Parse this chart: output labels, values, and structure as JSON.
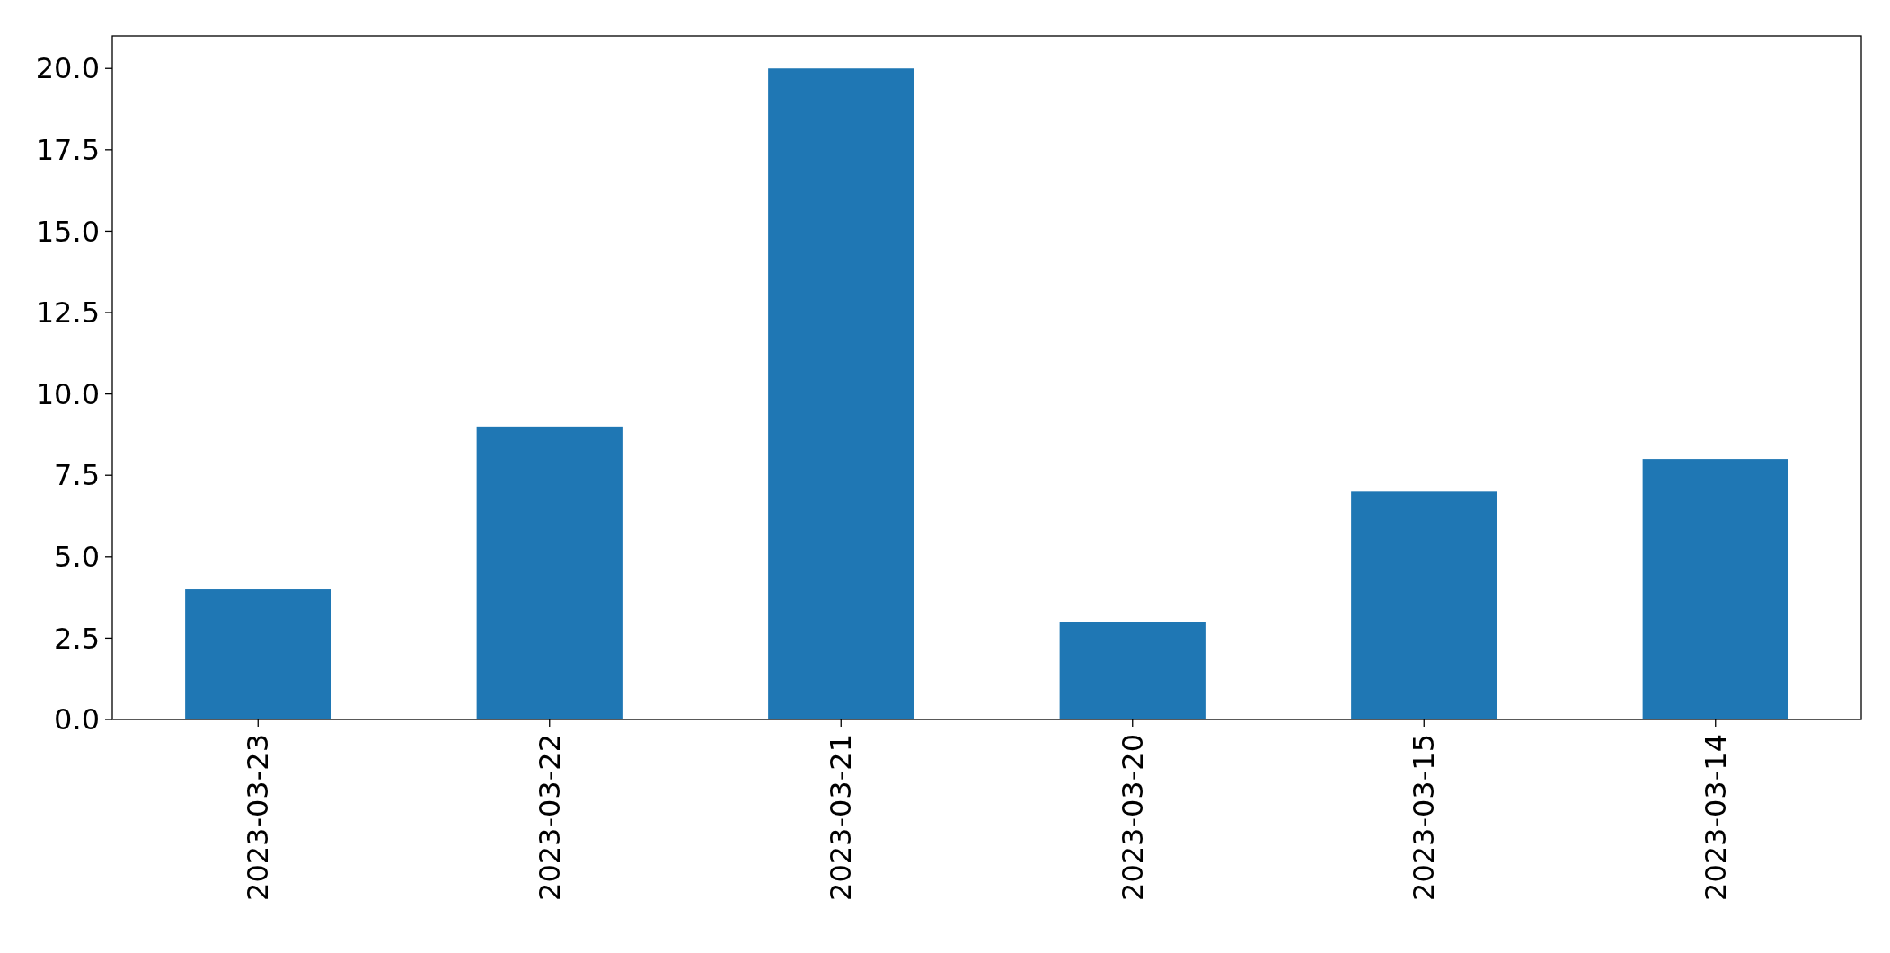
{
  "chart_data": {
    "type": "bar",
    "categories": [
      "2023-03-23",
      "2023-03-22",
      "2023-03-21",
      "2023-03-20",
      "2023-03-15",
      "2023-03-14"
    ],
    "values": [
      4,
      9,
      20,
      3,
      7,
      8
    ],
    "color": "#1f77b4",
    "ylim": [
      0,
      21
    ],
    "yticks": [
      {
        "value": 0,
        "label": "0.0"
      },
      {
        "value": 2.5,
        "label": "2.5"
      },
      {
        "value": 5,
        "label": "5.0"
      },
      {
        "value": 7.5,
        "label": "7.5"
      },
      {
        "value": 10,
        "label": "10.0"
      },
      {
        "value": 12.5,
        "label": "12.5"
      },
      {
        "value": 15,
        "label": "15.0"
      },
      {
        "value": 17.5,
        "label": "17.5"
      },
      {
        "value": 20,
        "label": "20.0"
      }
    ],
    "grid": false
  }
}
